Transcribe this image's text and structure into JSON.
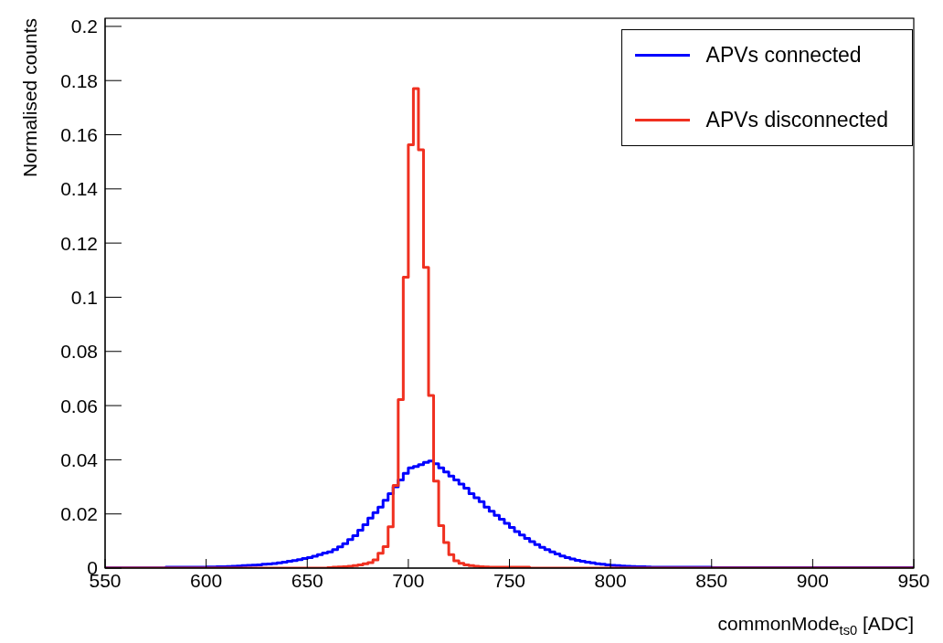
{
  "chart_data": {
    "type": "histogram",
    "xlabel": "commonMode$_{ts0}$ [ADC]",
    "ylabel": "Normalised counts",
    "bins": [
      550,
      552.5,
      555,
      557.5,
      560,
      562.5,
      565,
      567.5,
      570,
      572.5,
      575,
      577.5,
      580,
      582.5,
      585,
      587.5,
      590,
      592.5,
      595,
      597.5,
      600,
      602.5,
      605,
      607.5,
      610,
      612.5,
      615,
      617.5,
      620,
      622.5,
      625,
      627.5,
      630,
      632.5,
      635,
      637.5,
      640,
      642.5,
      645,
      647.5,
      650,
      652.5,
      655,
      657.5,
      660,
      662.5,
      665,
      667.5,
      670,
      672.5,
      675,
      677.5,
      680,
      682.5,
      685,
      687.5,
      690,
      692.5,
      695,
      697.5,
      700,
      702.5,
      705,
      707.5,
      710,
      712.5,
      715,
      717.5,
      720,
      722.5,
      725,
      727.5,
      730,
      732.5,
      735,
      737.5,
      740,
      742.5,
      745,
      747.5,
      750,
      752.5,
      755,
      757.5,
      760,
      762.5,
      765,
      767.5,
      770,
      772.5,
      775,
      777.5,
      780,
      782.5,
      785,
      787.5,
      790,
      792.5,
      795,
      797.5,
      800,
      802.5,
      805,
      807.5,
      810,
      812.5,
      815,
      817.5,
      820,
      822.5,
      825,
      827.5,
      830,
      832.5,
      835,
      837.5,
      840,
      842.5,
      845,
      847.5,
      850,
      852.5,
      855,
      857.5,
      860,
      862.5,
      865,
      867.5,
      870,
      872.5,
      875,
      877.5,
      880,
      882.5,
      885,
      887.5,
      890,
      892.5,
      895,
      897.5,
      900,
      902.5,
      905,
      907.5,
      910,
      912.5,
      915,
      917.5,
      920,
      922.5,
      925,
      927.5,
      930,
      932.5,
      935,
      937.5,
      940,
      942.5,
      945,
      947.5,
      950
    ],
    "series": [
      {
        "name": "APVs connected",
        "color": "#0000ff",
        "values": [
          0.0001,
          0.0001,
          0.0001,
          0.0001,
          0.0001,
          0.0001,
          0.0001,
          0.0001,
          0.0001,
          0.0001,
          0.0001,
          0.0001,
          0.0003,
          0.0003,
          0.0003,
          0.0003,
          0.0003,
          0.0003,
          0.0003,
          0.0003,
          0.0004,
          0.0004,
          0.0005,
          0.0005,
          0.0006,
          0.0007,
          0.0008,
          0.0009,
          0.001,
          0.0011,
          0.0012,
          0.0014,
          0.0015,
          0.0017,
          0.0019,
          0.0022,
          0.0025,
          0.0028,
          0.0031,
          0.0035,
          0.0039,
          0.0044,
          0.005,
          0.0056,
          0.006,
          0.0068,
          0.0078,
          0.009,
          0.0105,
          0.012,
          0.014,
          0.016,
          0.0185,
          0.0205,
          0.0225,
          0.025,
          0.0275,
          0.03,
          0.0325,
          0.035,
          0.037,
          0.0375,
          0.0382,
          0.039,
          0.0395,
          0.0385,
          0.037,
          0.0355,
          0.034,
          0.0325,
          0.031,
          0.0295,
          0.0275,
          0.026,
          0.0245,
          0.0225,
          0.021,
          0.0195,
          0.018,
          0.0165,
          0.015,
          0.0135,
          0.0122,
          0.011,
          0.0098,
          0.0087,
          0.0077,
          0.0068,
          0.006,
          0.0052,
          0.0045,
          0.0039,
          0.0034,
          0.0029,
          0.0025,
          0.0022,
          0.0019,
          0.0016,
          0.0014,
          0.0012,
          0.001,
          0.0009,
          0.0008,
          0.0007,
          0.0006,
          0.0005,
          0.0005,
          0.0004,
          0.0003,
          0.0003,
          0.0003,
          0.0003,
          0.0003,
          0.0003,
          0.0003,
          0.0003,
          0.0003,
          0.0003,
          0.0003,
          0.0003,
          0.0002,
          0.0002,
          0.0002,
          0.0002,
          0.0002,
          0.0002,
          0.0002,
          0.0002,
          0.0002,
          0.0002,
          0.0002,
          0.0002,
          0.0002,
          0.0002,
          0.0002,
          0.0002,
          0.0002,
          0.0002,
          0.0002,
          0.0002,
          0.0002,
          0.0002,
          0.0002,
          0.0002,
          0.0002,
          0.0002,
          0.0002,
          0.0002,
          0.0002,
          0.0002,
          0.0002,
          0.0002,
          0.0002,
          0.0002,
          0.0002,
          0.0002,
          0.0002,
          0.0002,
          0.0002,
          0.0002
        ]
      },
      {
        "name": "APVs disconnected",
        "color": "#f03020",
        "values": [
          0,
          0,
          0,
          0,
          0,
          0,
          0,
          0,
          0,
          0,
          0,
          0,
          0,
          0,
          0,
          0,
          0,
          0,
          0,
          0,
          0,
          0,
          0,
          0,
          0,
          0,
          0,
          0,
          0,
          0,
          0,
          0,
          0,
          0,
          0,
          0,
          0,
          0,
          0,
          0,
          0,
          0,
          0,
          0,
          0.0002,
          0.0003,
          0.0004,
          0.0005,
          0.0007,
          0.0009,
          0.0012,
          0.0016,
          0.002,
          0.003,
          0.0055,
          0.0079,
          0.0153,
          0.0305,
          0.0622,
          0.1074,
          0.1563,
          0.177,
          0.1544,
          0.111,
          0.0637,
          0.0321,
          0.0157,
          0.0094,
          0.005,
          0.0027,
          0.0018,
          0.0012,
          0.0009,
          0.0007,
          0.0005,
          0.0004,
          0.0003,
          0.0003,
          0.0003,
          0.0003,
          0.0003,
          0.0003,
          0.0003,
          0.0003,
          0,
          0,
          0,
          0,
          0,
          0,
          0,
          0,
          0,
          0,
          0,
          0,
          0,
          0,
          0,
          0,
          0,
          0,
          0,
          0,
          0,
          0,
          0,
          0,
          0,
          0,
          0,
          0,
          0,
          0,
          0,
          0,
          0,
          0,
          0,
          0,
          0,
          0,
          0,
          0,
          0,
          0,
          0,
          0,
          0,
          0,
          0,
          0,
          0,
          0,
          0,
          0,
          0,
          0,
          0,
          0,
          0,
          0,
          0,
          0,
          0,
          0,
          0,
          0,
          0,
          0,
          0,
          0,
          0,
          0,
          0,
          0,
          0,
          0,
          0,
          0
        ]
      }
    ],
    "xlim": [
      550,
      950
    ],
    "xticks": [
      550,
      600,
      650,
      700,
      750,
      800,
      850,
      900,
      950
    ],
    "ylim": [
      0,
      0.203
    ],
    "yticks": [
      0,
      0.02,
      0.04,
      0.06,
      0.08,
      0.1,
      0.12,
      0.14,
      0.16,
      0.18,
      0.2
    ],
    "grid": false,
    "legend": "top right"
  }
}
